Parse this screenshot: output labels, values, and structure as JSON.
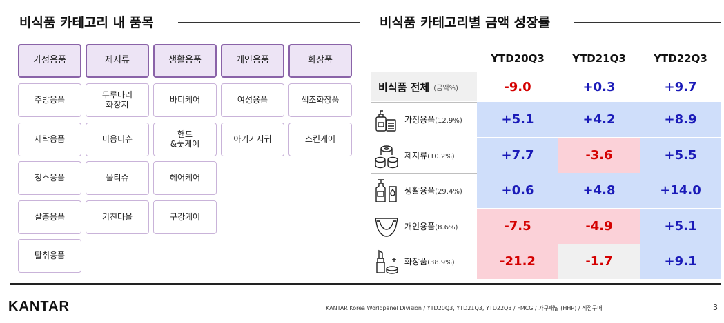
{
  "left": {
    "title": "비식품 카테고리 내 품목",
    "headers": [
      "가정용품",
      "제지류",
      "생활용품",
      "개인용품",
      "화장품"
    ],
    "columns": [
      [
        "주방용품",
        "세탁용품",
        "청소용품",
        "살충용품",
        "탈취용품"
      ],
      [
        "두루마리\n화장지",
        "미용티슈",
        "물티슈",
        "키친타올"
      ],
      [
        "바디케어",
        "핸드\n&풋케어",
        "헤어케어",
        "구강케어"
      ],
      [
        "여성용품",
        "아기기저귀"
      ],
      [
        "색조화장품",
        "스킨케어"
      ]
    ]
  },
  "right": {
    "title": "비식품 카테고리별 금액 성장률",
    "col_headers": [
      "YTD20Q3",
      "YTD21Q3",
      "YTD22Q3"
    ],
    "total": {
      "label": "비식품 전체",
      "sub": "(금액%)",
      "values": [
        "-9.0",
        "+0.3",
        "+9.7"
      ]
    },
    "rows": [
      {
        "name": "가정용품",
        "pct": "(12.9%)",
        "icon": "household-goods-icon",
        "values": [
          "+5.1",
          "+4.2",
          "+8.9"
        ],
        "bg": [
          "blue",
          "blue",
          "blue"
        ]
      },
      {
        "name": "제지류",
        "pct": "(10.2%)",
        "icon": "toilet-paper-icon",
        "values": [
          "+7.7",
          "-3.6",
          "+5.5"
        ],
        "bg": [
          "blue",
          "pink",
          "blue"
        ]
      },
      {
        "name": "생활용품",
        "pct": "(29.4%)",
        "icon": "toiletries-bottles-icon",
        "values": [
          "+0.6",
          "+4.8",
          "+14.0"
        ],
        "bg": [
          "blue",
          "blue",
          "blue"
        ]
      },
      {
        "name": "개인용품",
        "pct": "(8.6%)",
        "icon": "diaper-icon",
        "values": [
          "-7.5",
          "-4.9",
          "+5.1"
        ],
        "bg": [
          "pink",
          "pink",
          "blue"
        ]
      },
      {
        "name": "화장품",
        "pct": "(38.9%)",
        "icon": "lipstick-cosmetics-icon",
        "values": [
          "-21.2",
          "-1.7",
          "+9.1"
        ],
        "bg": [
          "pink",
          "gray",
          "blue"
        ]
      }
    ]
  },
  "colors": {
    "positive": "#1a1ab8",
    "negative": "#d40000",
    "blue_cell": "#cfdefa",
    "pink_cell": "#fbd1d8",
    "header_fill": "#ede4f5",
    "header_border": "#8a63a8"
  },
  "footer": {
    "logo": "KANTAR",
    "note": "KANTAR Korea Worldpanel Division / YTD20Q3, YTD21Q3, YTD22Q3 / FMCG / 가구패널 (HHP) / 직접구매",
    "page": "3"
  }
}
